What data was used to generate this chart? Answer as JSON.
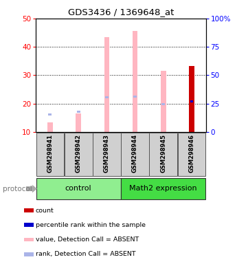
{
  "title": "GDS3436 / 1369648_at",
  "samples": [
    "GSM298941",
    "GSM298942",
    "GSM298943",
    "GSM298944",
    "GSM298945",
    "GSM298946"
  ],
  "value_bars": [
    13.5,
    16.5,
    43.5,
    45.5,
    31.5,
    null
  ],
  "rank_markers": [
    16.2,
    17.2,
    22.2,
    22.5,
    19.8,
    null
  ],
  "count_bar": [
    null,
    null,
    null,
    null,
    null,
    33.2
  ],
  "percentile_rank": [
    null,
    null,
    null,
    null,
    null,
    20.8
  ],
  "ylim_left": [
    10,
    50
  ],
  "ylim_right": [
    0,
    100
  ],
  "yticks_left": [
    10,
    20,
    30,
    40,
    50
  ],
  "yticks_right": [
    0,
    25,
    50,
    75,
    100
  ],
  "ytick_labels_right": [
    "0",
    "25",
    "50",
    "75",
    "100%"
  ],
  "value_color": "#ffb6c1",
  "rank_color": "#aab4e8",
  "count_color": "#cc0000",
  "percentile_color": "#0000cc",
  "bg_color": "#d0d0d0",
  "legend_items": [
    {
      "color": "#cc0000",
      "label": "count"
    },
    {
      "color": "#0000cc",
      "label": "percentile rank within the sample"
    },
    {
      "color": "#ffb6c1",
      "label": "value, Detection Call = ABSENT"
    },
    {
      "color": "#aab4e8",
      "label": "rank, Detection Call = ABSENT"
    }
  ],
  "group_defs": [
    {
      "start": 0,
      "end": 2,
      "name": "control",
      "color": "#90ee90"
    },
    {
      "start": 3,
      "end": 5,
      "name": "Math2 expression",
      "color": "#44dd44"
    }
  ]
}
